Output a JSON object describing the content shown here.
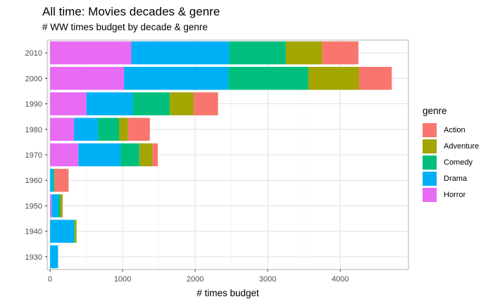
{
  "chart_data": {
    "type": "bar",
    "orientation": "horizontal",
    "stacked": true,
    "title": "All time: Movies decades & genre",
    "subtitle": "# WW times budget by decade & genre",
    "xlabel": "# times budget",
    "ylabel": "",
    "xlim": [
      -40,
      4940
    ],
    "xticks": [
      0,
      1000,
      2000,
      3000,
      4000
    ],
    "categories": [
      "1930",
      "1940",
      "1950",
      "1960",
      "1970",
      "1980",
      "1990",
      "2000",
      "2010"
    ],
    "stack_order": [
      "Horror",
      "Drama",
      "Comedy",
      "Adventure",
      "Action"
    ],
    "series": [
      {
        "name": "Action",
        "color": "#F8766D",
        "values": [
          0,
          0,
          5,
          195,
          75,
          300,
          335,
          450,
          500
        ]
      },
      {
        "name": "Adventure",
        "color": "#A3A500",
        "values": [
          0,
          25,
          30,
          0,
          180,
          125,
          330,
          700,
          500
        ]
      },
      {
        "name": "Comedy",
        "color": "#00BF7D",
        "values": [
          0,
          10,
          30,
          20,
          260,
          290,
          510,
          1100,
          780
        ]
      },
      {
        "name": "Drama",
        "color": "#00B0F6",
        "values": [
          110,
          330,
          90,
          40,
          580,
          330,
          640,
          1440,
          1350
        ]
      },
      {
        "name": "Horror",
        "color": "#E76BF3",
        "values": [
          0,
          0,
          20,
          0,
          390,
          330,
          500,
          1020,
          1120
        ]
      }
    ],
    "grid": true,
    "legend": {
      "title": "genre",
      "position": "right"
    }
  }
}
